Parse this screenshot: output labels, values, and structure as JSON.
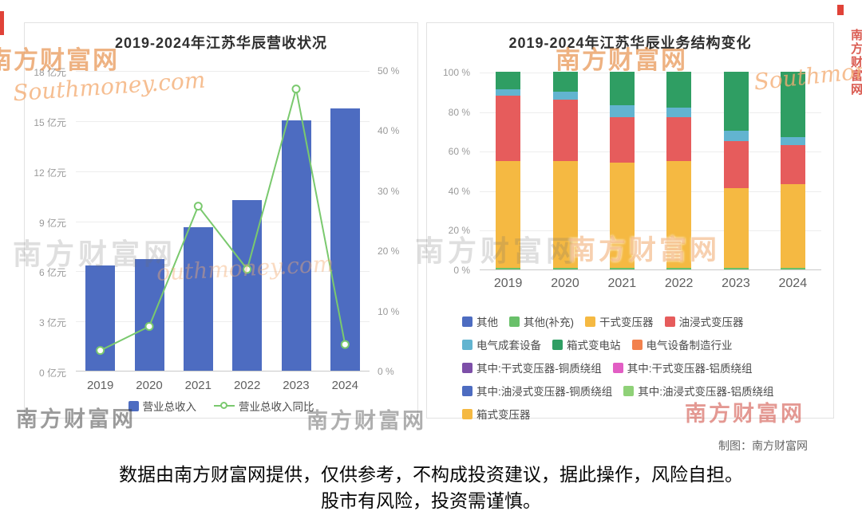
{
  "page": {
    "watermark_brand": "南方财富网",
    "watermark_site": "Southmoney.com",
    "watermark_site2": "outhmoney.com",
    "credit": "制图：南方财富网",
    "disclaimer_line1": "数据由南方财富网提供，仅供参考，不构成投资建议，据此操作，风险自担。",
    "disclaimer_line2": "股市有风险，投资需谨慎。"
  },
  "chart_data": [
    {
      "type": "bar",
      "title": "2019-2024年江苏华辰营收状况",
      "categories": [
        "2019",
        "2020",
        "2021",
        "2022",
        "2023",
        "2024"
      ],
      "series": [
        {
          "name": "营业总收入",
          "type": "bar",
          "unit": "亿元",
          "color": "#4d6cc1",
          "values": [
            6.3,
            6.7,
            8.6,
            10.2,
            15.0,
            15.7
          ]
        },
        {
          "name": "营业总收入同比",
          "type": "line",
          "unit": "%",
          "color": "#7ac96e",
          "values": [
            3.5,
            7.5,
            27.5,
            17,
            47,
            4.5
          ]
        }
      ],
      "y_left": {
        "min": 0,
        "max": 18,
        "step": 3,
        "suffix": " 亿元"
      },
      "y_right": {
        "min": 0,
        "max": 50,
        "step": 10,
        "suffix": " %"
      },
      "legend_position": "bottom",
      "grid": true
    },
    {
      "type": "bar",
      "subtype": "stacked-100",
      "title": "2019-2024年江苏华辰业务结构变化",
      "categories": [
        "2019",
        "2020",
        "2021",
        "2022",
        "2023",
        "2024"
      ],
      "y": {
        "min": 0,
        "max": 100,
        "step": 20,
        "suffix": " %"
      },
      "series": [
        {
          "name": "其他(补充)",
          "color": "#69c06a",
          "values": [
            1,
            1,
            1,
            1,
            1,
            1
          ]
        },
        {
          "name": "干式变压器",
          "color": "#f5b942",
          "values": [
            54,
            54,
            53,
            54,
            40,
            42
          ]
        },
        {
          "name": "油浸式变压器",
          "color": "#e65c5c",
          "values": [
            33,
            31,
            23,
            22,
            24,
            20
          ]
        },
        {
          "name": "电气成套设备",
          "color": "#62b4d0",
          "values": [
            3,
            4,
            6,
            5,
            5,
            4
          ]
        },
        {
          "name": "箱式变电站",
          "color": "#2f9e63",
          "values": [
            9,
            10,
            17,
            18,
            30,
            33
          ]
        }
      ],
      "legend": [
        {
          "label": "其他",
          "color": "#4d6cc1"
        },
        {
          "label": "其他(补充)",
          "color": "#69c06a"
        },
        {
          "label": "干式变压器",
          "color": "#f5b942"
        },
        {
          "label": "油浸式变压器",
          "color": "#e65c5c"
        },
        {
          "label": "电气成套设备",
          "color": "#62b4d0"
        },
        {
          "label": "箱式变电站",
          "color": "#2f9e63"
        },
        {
          "label": "电气设备制造行业",
          "color": "#f2814d"
        },
        {
          "label": "其中:干式变压器-铜质绕组",
          "color": "#7d4fa8"
        },
        {
          "label": "其中:干式变压器-铝质绕组",
          "color": "#e25ec4"
        },
        {
          "label": "其中:油浸式变压器-铜质绕组",
          "color": "#4d6cc1"
        },
        {
          "label": "其中:油浸式变压器-铝质绕组",
          "color": "#8fd178"
        },
        {
          "label": "箱式变压器",
          "color": "#f5b942"
        }
      ],
      "legend_position": "bottom",
      "grid": true
    }
  ]
}
